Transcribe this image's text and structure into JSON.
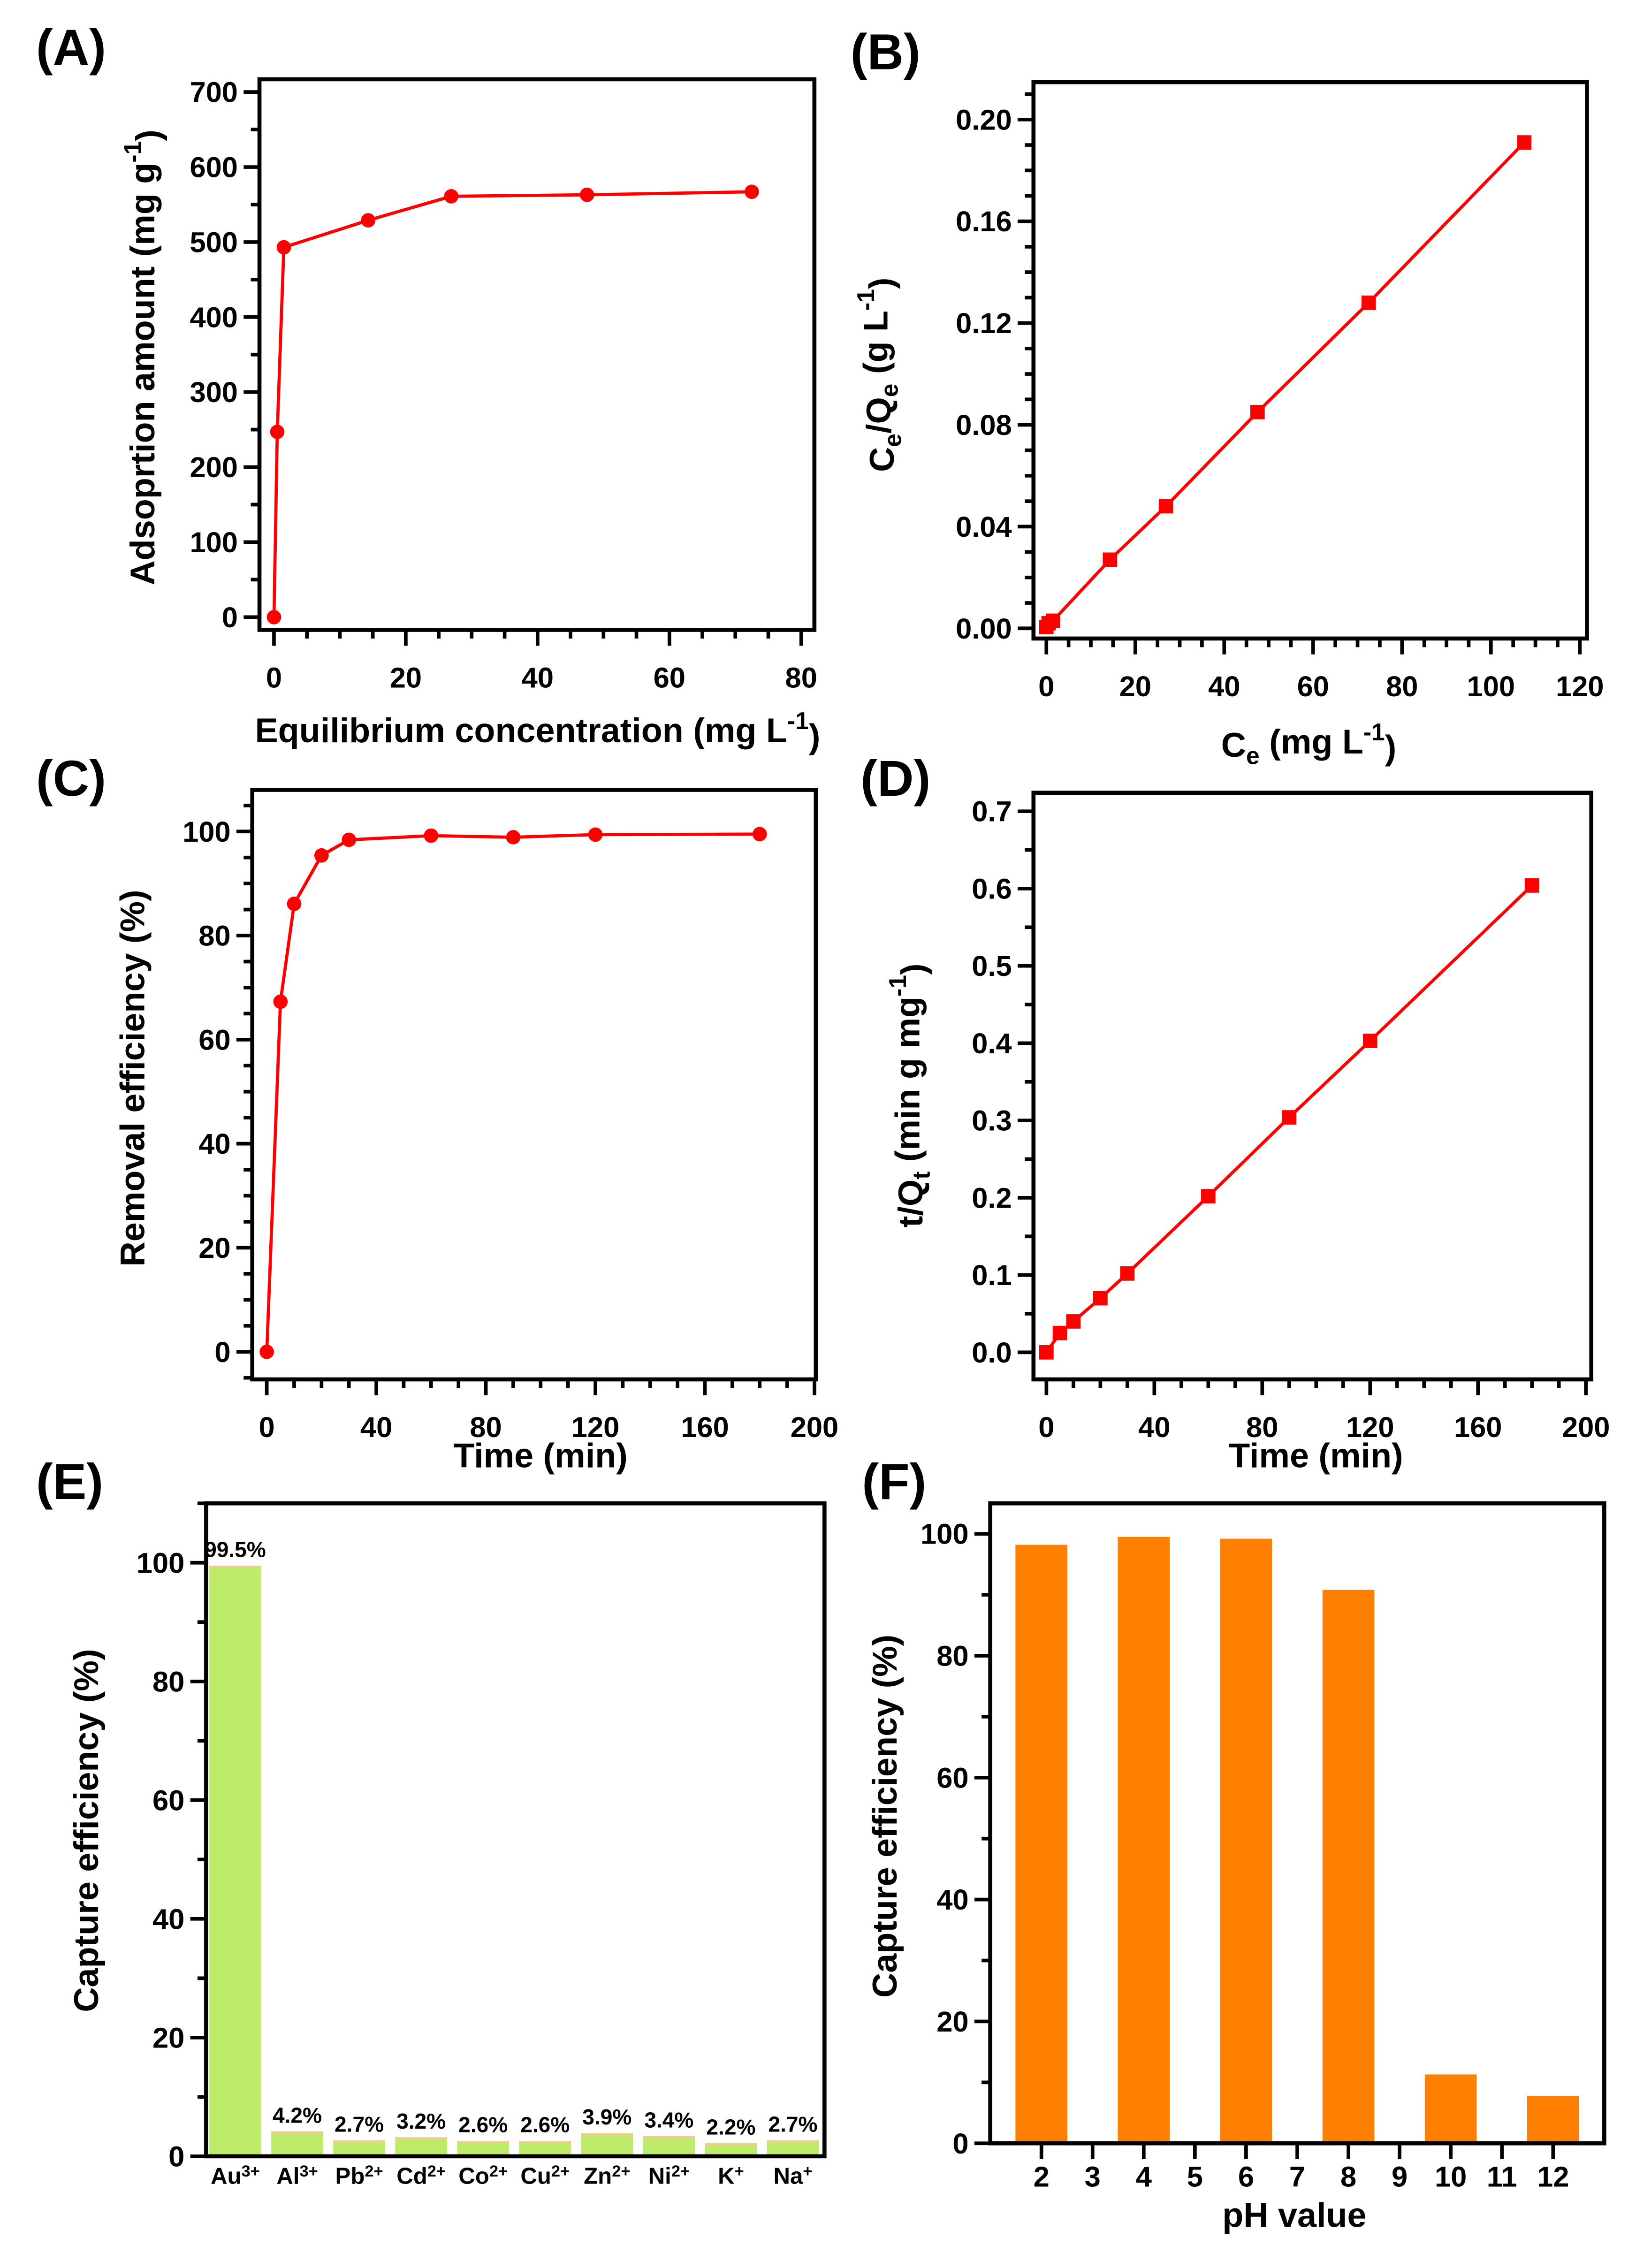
{
  "chart_data": [
    {
      "panel": "A",
      "label": "(A)",
      "type": "line",
      "marker": "circle",
      "color": "#ff0000",
      "x": [
        0,
        0.5,
        1.5,
        14.3,
        26.9,
        47.5,
        72.5
      ],
      "y": [
        0,
        247,
        493,
        529,
        561,
        563,
        567
      ],
      "xlim": [
        -2.2,
        82
      ],
      "ylim": [
        -17,
        717
      ],
      "x_ticks": [
        "0",
        "20",
        "40",
        "60",
        "80"
      ],
      "y_ticks": [
        "0",
        "100",
        "200",
        "300",
        "400",
        "500",
        "600",
        "700"
      ],
      "xlabel": [
        {
          "t": "Equilibrium concentration (mg L"
        },
        {
          "t": "-1",
          "s": "sup"
        },
        {
          "t": ")"
        }
      ],
      "ylabel": [
        {
          "t": "Adsoprtion amount (mg g"
        },
        {
          "t": "-1",
          "s": "sup"
        },
        {
          "t": ")"
        }
      ]
    },
    {
      "panel": "B",
      "label": "(B)",
      "type": "line",
      "marker": "square",
      "color": "#ff0000",
      "x": [
        0,
        0.5,
        1.5,
        14.3,
        26.9,
        47.5,
        72.5,
        107.5
      ],
      "y": [
        0.0005,
        0.002,
        0.003,
        0.027,
        0.048,
        0.085,
        0.128,
        0.191
      ],
      "xlim": [
        -2.9,
        121.6
      ],
      "ylim": [
        -0.004,
        0.2147
      ],
      "x_ticks": [
        "0",
        "20",
        "40",
        "60",
        "80",
        "100",
        "120"
      ],
      "y_ticks": [
        "0.00",
        "0.04",
        "0.08",
        "0.12",
        "0.16",
        "0.20"
      ],
      "xlabel": [
        {
          "t": "C"
        },
        {
          "t": "e",
          "s": "sub"
        },
        {
          "t": " (mg L"
        },
        {
          "t": "-1",
          "s": "sup"
        },
        {
          "t": ")"
        }
      ],
      "ylabel": [
        {
          "t": "C"
        },
        {
          "t": "e",
          "s": "sub"
        },
        {
          "t": "/Q"
        },
        {
          "t": "e",
          "s": "sub"
        },
        {
          "t": " (g L"
        },
        {
          "t": "-1",
          "s": "sup"
        },
        {
          "t": ")"
        }
      ]
    },
    {
      "panel": "C",
      "label": "(C)",
      "type": "line",
      "marker": "circle",
      "color": "#ff0000",
      "x": [
        0,
        5,
        10,
        20,
        30,
        60,
        90,
        120,
        180
      ],
      "y": [
        0,
        67.3,
        86.1,
        95.4,
        98.4,
        99.2,
        98.9,
        99.4,
        99.5
      ],
      "xlim": [
        -5.3,
        200.5
      ],
      "ylim": [
        -5.3,
        108
      ],
      "x_ticks": [
        "0",
        "40",
        "80",
        "120",
        "160",
        "200"
      ],
      "y_ticks": [
        "0",
        "20",
        "40",
        "60",
        "80",
        "100"
      ],
      "xlabel": [
        {
          "t": "Time (min)"
        }
      ],
      "ylabel": [
        {
          "t": "Removal efficiency (%)"
        }
      ]
    },
    {
      "panel": "D",
      "label": "(D)",
      "type": "line",
      "marker": "square",
      "color": "#ff0000",
      "x": [
        0,
        5,
        10,
        20,
        30,
        60,
        90,
        120,
        180
      ],
      "y": [
        0,
        0.025,
        0.04,
        0.07,
        0.102,
        0.202,
        0.304,
        0.403,
        0.604
      ],
      "xlim": [
        -4.8,
        202
      ],
      "ylim": [
        -0.035,
        0.724
      ],
      "x_ticks": [
        "0",
        "40",
        "80",
        "120",
        "160",
        "200"
      ],
      "y_ticks": [
        "0.0",
        "0.1",
        "0.2",
        "0.3",
        "0.4",
        "0.5",
        "0.6",
        "0.7"
      ],
      "xlabel": [
        {
          "t": "Time (min)"
        }
      ],
      "ylabel": [
        {
          "t": "t/Q"
        },
        {
          "t": "t",
          "s": "sub"
        },
        {
          "t": " (min g mg"
        },
        {
          "t": "-1",
          "s": "sup"
        },
        {
          "t": ")"
        }
      ]
    },
    {
      "panel": "E",
      "label": "(E)",
      "type": "bar",
      "color": "#bfeb6b",
      "categories": [
        {
          "ion": "Au",
          "charge": "3+"
        },
        {
          "ion": "Al",
          "charge": "3+"
        },
        {
          "ion": "Pb",
          "charge": "2+"
        },
        {
          "ion": "Cd",
          "charge": "2+"
        },
        {
          "ion": "Co",
          "charge": "2+"
        },
        {
          "ion": "Cu",
          "charge": "2+"
        },
        {
          "ion": "Zn",
          "charge": "2+"
        },
        {
          "ion": "Ni",
          "charge": "2+"
        },
        {
          "ion": "K",
          "charge": "+"
        },
        {
          "ion": "Na",
          "charge": "+"
        }
      ],
      "values": [
        99.5,
        4.2,
        2.7,
        3.2,
        2.6,
        2.6,
        3.9,
        3.4,
        2.2,
        2.7
      ],
      "value_labels": [
        "99.5%",
        "4.2%",
        "2.7%",
        "3.2%",
        "2.6%",
        "2.6%",
        "3.9%",
        "3.4%",
        "2.2%",
        "2.7%"
      ],
      "xlim": [
        -0.47,
        9.51
      ],
      "ylim": [
        0,
        110
      ],
      "y_ticks": [
        "0",
        "20",
        "40",
        "60",
        "80",
        "100"
      ],
      "xlabel": [],
      "ylabel": [
        {
          "t": "Capture efficiency (%)"
        }
      ]
    },
    {
      "panel": "F",
      "label": "(F)",
      "type": "bar",
      "color": "#ff8000",
      "x": [
        2,
        4,
        6,
        8,
        10,
        12
      ],
      "values": [
        98.2,
        99.5,
        99.2,
        90.8,
        11.3,
        7.8
      ],
      "xlim": [
        1,
        13
      ],
      "ylim": [
        0,
        105
      ],
      "x_ticks": [
        "2",
        "3",
        "4",
        "5",
        "6",
        "7",
        "8",
        "9",
        "10",
        "11",
        "12"
      ],
      "y_ticks": [
        "0",
        "20",
        "40",
        "60",
        "80",
        "100"
      ],
      "xlabel": [
        {
          "t": "pH value"
        }
      ],
      "ylabel": [
        {
          "t": "Capture efficiency (%)"
        }
      ]
    }
  ]
}
